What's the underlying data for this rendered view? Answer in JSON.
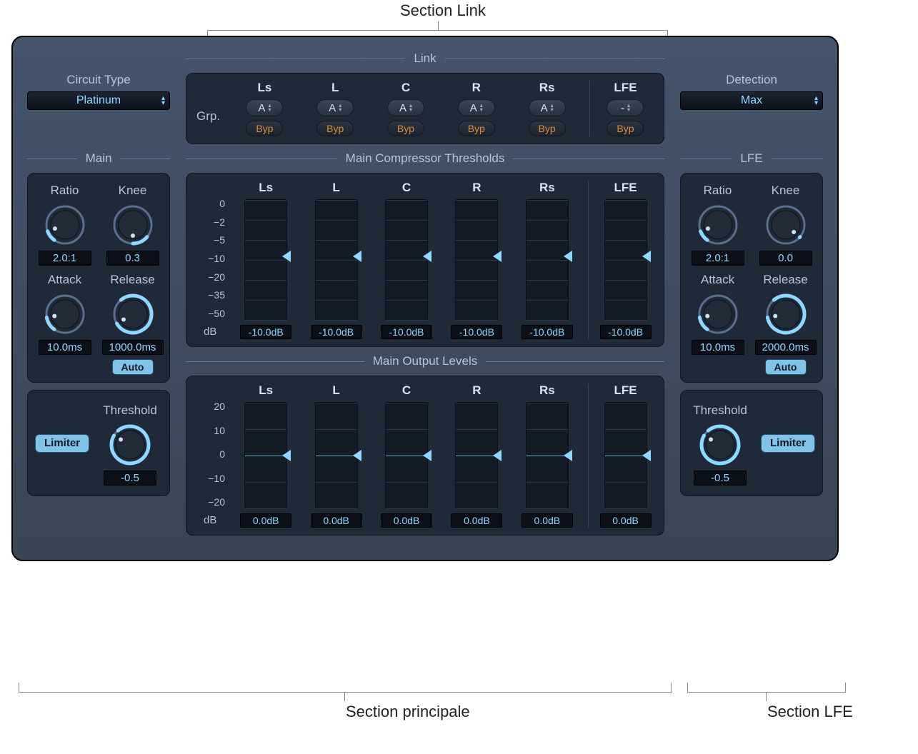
{
  "annotations": {
    "top": "Section Link",
    "bottom_main": "Section principale",
    "bottom_lfe": "Section LFE"
  },
  "link": {
    "title": "Link",
    "grp_label": "Grp.",
    "channels": [
      "Ls",
      "L",
      "C",
      "R",
      "Rs"
    ],
    "lfe_label": "LFE",
    "group_values": [
      "A",
      "A",
      "A",
      "A",
      "A"
    ],
    "lfe_group_value": "-",
    "byp_label": "Byp"
  },
  "circuit_type": {
    "label": "Circuit Type",
    "value": "Platinum"
  },
  "detection": {
    "label": "Detection",
    "value": "Max"
  },
  "main": {
    "title": "Main",
    "ratio": {
      "label": "Ratio",
      "value": "2.0:1",
      "angle_start": 215,
      "angle_end": 250
    },
    "knee": {
      "label": "Knee",
      "value": "0.3",
      "angle_start": 130,
      "angle_end": 180
    },
    "attack": {
      "label": "Attack",
      "value": "10.0ms",
      "angle_start": 215,
      "angle_end": 260
    },
    "release": {
      "label": "Release",
      "value": "1000.0ms",
      "angle_start": -40,
      "angle_end": 240
    },
    "auto_label": "Auto",
    "limiter_label": "Limiter",
    "threshold": {
      "label": "Threshold",
      "value": "-0.5",
      "angle_start": -40,
      "angle_end": 300
    }
  },
  "lfe": {
    "title": "LFE",
    "ratio": {
      "label": "Ratio",
      "value": "2.0:1",
      "angle_start": 215,
      "angle_end": 250
    },
    "knee": {
      "label": "Knee",
      "value": "0.0",
      "angle_start": 130,
      "angle_end": 132
    },
    "attack": {
      "label": "Attack",
      "value": "10.0ms",
      "angle_start": 215,
      "angle_end": 260
    },
    "release": {
      "label": "Release",
      "value": "2000.0ms",
      "angle_start": -40,
      "angle_end": 260
    },
    "auto_label": "Auto",
    "limiter_label": "Limiter",
    "threshold": {
      "label": "Threshold",
      "value": "-0.5",
      "angle_start": -40,
      "angle_end": 300
    }
  },
  "thresholds": {
    "title": "Main Compressor Thresholds",
    "scale": [
      "0",
      "−2",
      "−5",
      "−10",
      "−20",
      "−35",
      "−50"
    ],
    "db_label": "dB",
    "channels": [
      "Ls",
      "L",
      "C",
      "R",
      "Rs"
    ],
    "lfe_label": "LFE",
    "values": [
      "-10.0dB",
      "-10.0dB",
      "-10.0dB",
      "-10.0dB",
      "-10.0dB"
    ],
    "lfe_value": "-10.0dB",
    "thumb_pct": 47
  },
  "outputs": {
    "title": "Main Output Levels",
    "scale": [
      "20",
      "10",
      "0",
      "−10",
      "−20"
    ],
    "db_label": "dB",
    "channels": [
      "Ls",
      "L",
      "C",
      "R",
      "Rs"
    ],
    "lfe_label": "LFE",
    "values": [
      "0.0dB",
      "0.0dB",
      "0.0dB",
      "0.0dB",
      "0.0dB"
    ],
    "lfe_value": "0.0dB",
    "thumb_pct": 50,
    "zero_pct": 50
  },
  "colors": {
    "accent": "#8fd8ff",
    "panel_bg": "#3e4d61",
    "panel_dark": "#1f2a38",
    "orange": "#e08a3a"
  }
}
